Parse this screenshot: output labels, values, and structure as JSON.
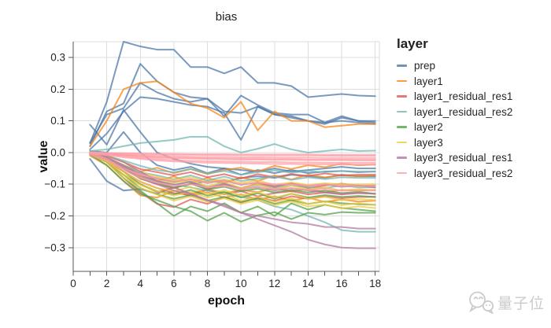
{
  "title": "bias",
  "legend": {
    "title": "layer"
  },
  "watermark": {
    "text": "量子位"
  },
  "colors": {
    "grid": "#dddddd",
    "view_border": "#dddddd",
    "axis": "#555555",
    "tick_label": "#262626",
    "watermark": "#cbcbcb"
  },
  "chart_data": {
    "type": "line",
    "title": "bias",
    "xlabel": "epoch",
    "ylabel": "value",
    "xlim": [
      0,
      18.25
    ],
    "ylim": [
      -0.375,
      0.35
    ],
    "x_ticks": [
      0,
      2,
      4,
      6,
      8,
      10,
      12,
      14,
      16,
      18
    ],
    "x_minor_tick_step": 1,
    "y_ticks": [
      0.3,
      0.2,
      0.1,
      0.0,
      -0.1,
      -0.2,
      -0.3
    ],
    "grid": true,
    "legend_position": "right",
    "line_opacity": 0.75,
    "line_width": 2,
    "x": [
      1,
      2,
      3,
      4,
      5,
      6,
      7,
      8,
      9,
      10,
      11,
      12,
      13,
      14,
      15,
      16,
      17,
      18
    ],
    "groups": [
      {
        "name": "prep",
        "color": "#4c78a8",
        "lines": [
          [
            0.03,
            0.16,
            0.35,
            0.335,
            0.325,
            0.325,
            0.27,
            0.27,
            0.25,
            0.27,
            0.22,
            0.22,
            0.21,
            0.175,
            0.18,
            0.185,
            0.18,
            0.178
          ],
          [
            0.02,
            0.13,
            0.155,
            0.28,
            0.225,
            0.19,
            0.175,
            0.17,
            0.13,
            0.125,
            0.145,
            0.12,
            0.115,
            0.1,
            0.09,
            0.11,
            0.1,
            0.095
          ],
          [
            0.03,
            0.12,
            0.14,
            0.22,
            0.19,
            0.17,
            0.16,
            0.17,
            0.115,
            0.18,
            0.15,
            0.125,
            0.12,
            0.12,
            0.095,
            0.115,
            0.1,
            0.1
          ],
          [
            0.01,
            0.06,
            0.13,
            0.175,
            0.17,
            0.16,
            0.15,
            0.145,
            0.125,
            0.04,
            0.145,
            0.12,
            0.11,
            0.1,
            0.095,
            0.1,
            0.095,
            0.09
          ],
          [
            0.088,
            0.025,
            0.135,
            0.065,
            0.0,
            -0.02,
            -0.035,
            -0.045,
            -0.05,
            -0.055,
            -0.06,
            -0.05,
            -0.06,
            -0.055,
            -0.05,
            -0.045,
            -0.05,
            -0.05
          ],
          [
            -0.02,
            -0.09,
            -0.12,
            -0.115,
            -0.13,
            -0.11,
            -0.1,
            -0.09,
            -0.095,
            -0.08,
            -0.075,
            -0.08,
            -0.07,
            -0.075,
            -0.08,
            -0.07,
            -0.075,
            -0.075
          ],
          [
            0.005,
            0.0,
            0.065,
            0.0,
            -0.04,
            -0.055,
            -0.045,
            -0.065,
            -0.05,
            -0.07,
            -0.055,
            -0.065,
            -0.055,
            -0.065,
            -0.06,
            -0.058,
            -0.062,
            -0.06
          ]
        ]
      },
      {
        "name": "layer1",
        "color": "#f58518",
        "lines": [
          [
            0.02,
            0.1,
            0.2,
            0.22,
            0.225,
            0.19,
            0.155,
            0.14,
            0.11,
            0.16,
            0.07,
            0.13,
            0.1,
            0.1,
            0.08,
            0.085,
            0.09,
            0.09
          ],
          [
            0.0,
            -0.02,
            -0.05,
            -0.075,
            -0.09,
            -0.075,
            -0.095,
            -0.08,
            -0.095,
            -0.078,
            -0.09,
            -0.072,
            -0.085,
            -0.07,
            -0.078,
            -0.072,
            -0.075,
            -0.072
          ],
          [
            -0.005,
            -0.03,
            -0.07,
            -0.1,
            -0.125,
            -0.11,
            -0.13,
            -0.115,
            -0.128,
            -0.118,
            -0.125,
            -0.112,
            -0.122,
            -0.115,
            -0.125,
            -0.118,
            -0.12,
            -0.118
          ],
          [
            0.0,
            -0.015,
            -0.04,
            -0.06,
            -0.048,
            -0.065,
            -0.052,
            -0.068,
            -0.055,
            -0.048,
            -0.06,
            -0.042,
            -0.052,
            -0.04,
            -0.046,
            -0.035,
            -0.04,
            -0.038
          ],
          [
            -0.01,
            -0.04,
            -0.09,
            -0.135,
            -0.142,
            -0.12,
            -0.138,
            -0.125,
            -0.142,
            -0.132,
            -0.148,
            -0.138,
            -0.152,
            -0.142,
            -0.156,
            -0.148,
            -0.155,
            -0.152
          ]
        ]
      },
      {
        "name": "layer1_residual_res1",
        "color": "#e45756",
        "lines": [
          [
            0.0,
            -0.03,
            -0.08,
            -0.125,
            -0.162,
            -0.172,
            -0.148,
            -0.162,
            -0.14,
            -0.158,
            -0.142,
            -0.152,
            -0.138,
            -0.146,
            -0.138,
            -0.144,
            -0.14,
            -0.14
          ],
          [
            -0.005,
            -0.02,
            -0.05,
            -0.082,
            -0.1,
            -0.112,
            -0.098,
            -0.116,
            -0.102,
            -0.112,
            -0.098,
            -0.108,
            -0.098,
            -0.112,
            -0.104,
            -0.098,
            -0.105,
            -0.104
          ],
          [
            0.0,
            -0.01,
            -0.03,
            -0.052,
            -0.062,
            -0.072,
            -0.062,
            -0.078,
            -0.068,
            -0.082,
            -0.068,
            -0.078,
            -0.068,
            -0.074,
            -0.066,
            -0.072,
            -0.07,
            -0.07
          ],
          [
            -0.005,
            -0.025,
            -0.06,
            -0.092,
            -0.112,
            -0.128,
            -0.134,
            -0.118,
            -0.132,
            -0.122,
            -0.138,
            -0.128,
            -0.122,
            -0.132,
            -0.126,
            -0.132,
            -0.128,
            -0.13
          ]
        ]
      },
      {
        "name": "layer1_residual_res2",
        "color": "#72b7b2",
        "lines": [
          [
            0.005,
            0.01,
            0.02,
            0.03,
            0.035,
            0.04,
            0.05,
            0.05,
            0.02,
            0.0,
            0.012,
            0.027,
            0.01,
            0.0,
            0.005,
            0.01,
            0.005,
            0.006
          ],
          [
            0.0,
            -0.02,
            -0.05,
            -0.08,
            -0.09,
            -0.1,
            -0.11,
            -0.12,
            -0.13,
            -0.14,
            -0.15,
            -0.17,
            -0.18,
            -0.2,
            -0.22,
            -0.245,
            -0.25,
            -0.25
          ],
          [
            0.0,
            -0.015,
            -0.04,
            -0.062,
            -0.072,
            -0.084,
            -0.072,
            -0.088,
            -0.076,
            -0.09,
            -0.082,
            -0.076,
            -0.086,
            -0.078,
            -0.084,
            -0.078,
            -0.08,
            -0.08
          ],
          [
            -0.005,
            -0.02,
            -0.045,
            -0.072,
            -0.09,
            -0.102,
            -0.092,
            -0.108,
            -0.098,
            -0.112,
            -0.102,
            -0.112,
            -0.104,
            -0.11,
            -0.112,
            -0.104,
            -0.11,
            -0.11
          ],
          [
            0.0,
            -0.01,
            -0.025,
            -0.042,
            -0.056,
            -0.062,
            -0.052,
            -0.066,
            -0.058,
            -0.07,
            -0.062,
            -0.056,
            -0.064,
            -0.058,
            -0.062,
            -0.058,
            -0.06,
            -0.06
          ]
        ]
      },
      {
        "name": "layer2",
        "color": "#54a24b",
        "lines": [
          [
            0.0,
            -0.03,
            -0.08,
            -0.12,
            -0.16,
            -0.2,
            -0.17,
            -0.185,
            -0.16,
            -0.19,
            -0.17,
            -0.2,
            -0.16,
            -0.18,
            -0.165,
            -0.175,
            -0.18,
            -0.185
          ],
          [
            -0.005,
            -0.04,
            -0.09,
            -0.13,
            -0.15,
            -0.17,
            -0.185,
            -0.215,
            -0.19,
            -0.218,
            -0.198,
            -0.188,
            -0.21,
            -0.19,
            -0.196,
            -0.188,
            -0.19,
            -0.19
          ],
          [
            0.0,
            -0.02,
            -0.06,
            -0.1,
            -0.122,
            -0.132,
            -0.118,
            -0.136,
            -0.124,
            -0.142,
            -0.128,
            -0.146,
            -0.13,
            -0.142,
            -0.134,
            -0.14,
            -0.137,
            -0.14
          ],
          [
            -0.005,
            -0.03,
            -0.07,
            -0.112,
            -0.132,
            -0.146,
            -0.134,
            -0.152,
            -0.14,
            -0.156,
            -0.144,
            -0.162,
            -0.15,
            -0.162,
            -0.154,
            -0.16,
            -0.163,
            -0.165
          ],
          [
            0.0,
            -0.015,
            -0.05,
            -0.082,
            -0.096,
            -0.112,
            -0.098,
            -0.116,
            -0.108,
            -0.122,
            -0.114,
            -0.126,
            -0.118,
            -0.126,
            -0.12,
            -0.128,
            -0.124,
            -0.13
          ]
        ]
      },
      {
        "name": "layer3",
        "color": "#eeca3b",
        "lines": [
          [
            0.0,
            -0.02,
            -0.06,
            -0.092,
            -0.112,
            -0.122,
            -0.108,
            -0.132,
            -0.118,
            -0.136,
            -0.124,
            -0.142,
            -0.13,
            -0.146,
            -0.14,
            -0.15,
            -0.147,
            -0.15
          ],
          [
            -0.005,
            -0.03,
            -0.08,
            -0.112,
            -0.132,
            -0.152,
            -0.138,
            -0.156,
            -0.144,
            -0.162,
            -0.15,
            -0.166,
            -0.154,
            -0.17,
            -0.164,
            -0.176,
            -0.17,
            -0.175
          ],
          [
            0.0,
            -0.015,
            -0.04,
            -0.072,
            -0.086,
            -0.096,
            -0.088,
            -0.106,
            -0.094,
            -0.112,
            -0.1,
            -0.116,
            -0.104,
            -0.116,
            -0.11,
            -0.12,
            -0.115,
            -0.12
          ],
          [
            -0.005,
            -0.025,
            -0.07,
            -0.102,
            -0.122,
            -0.136,
            -0.124,
            -0.142,
            -0.13,
            -0.152,
            -0.14,
            -0.156,
            -0.144,
            -0.162,
            -0.154,
            -0.166,
            -0.16,
            -0.165
          ],
          [
            0.0,
            -0.01,
            -0.03,
            -0.062,
            -0.076,
            -0.086,
            -0.078,
            -0.092,
            -0.084,
            -0.096,
            -0.088,
            -0.102,
            -0.094,
            -0.102,
            -0.097,
            -0.1,
            -0.1,
            -0.1
          ]
        ]
      },
      {
        "name": "layer3_residual_res1",
        "color": "#b279a2",
        "lines": [
          [
            0.0,
            -0.01,
            -0.03,
            -0.06,
            -0.09,
            -0.11,
            -0.13,
            -0.15,
            -0.17,
            -0.19,
            -0.21,
            -0.23,
            -0.25,
            -0.275,
            -0.29,
            -0.3,
            -0.302,
            -0.302
          ],
          [
            -0.005,
            -0.02,
            -0.05,
            -0.08,
            -0.1,
            -0.12,
            -0.13,
            -0.15,
            -0.165,
            -0.19,
            -0.2,
            -0.21,
            -0.22,
            -0.225,
            -0.235,
            -0.235,
            -0.24,
            -0.24
          ],
          [
            0.0,
            -0.015,
            -0.04,
            -0.072,
            -0.09,
            -0.102,
            -0.092,
            -0.112,
            -0.098,
            -0.116,
            -0.108,
            -0.12,
            -0.112,
            -0.12,
            -0.126,
            -0.13,
            -0.127,
            -0.13
          ],
          [
            -0.005,
            -0.02,
            -0.045,
            -0.066,
            -0.082,
            -0.092,
            -0.084,
            -0.096,
            -0.088,
            -0.102,
            -0.094,
            -0.106,
            -0.098,
            -0.106,
            -0.1,
            -0.108,
            -0.104,
            -0.11
          ]
        ]
      },
      {
        "name": "layer3_residual_res2",
        "color": "#ff9da6",
        "lines": [
          [
            0.0,
            -0.002,
            -0.004,
            -0.005,
            -0.006,
            -0.007,
            -0.007,
            -0.008,
            -0.008,
            -0.008,
            -0.009,
            -0.009,
            -0.009,
            -0.009,
            -0.01,
            -0.01,
            -0.01,
            -0.01
          ],
          [
            0.001,
            -0.001,
            -0.002,
            -0.003,
            -0.004,
            -0.004,
            -0.005,
            -0.005,
            -0.005,
            -0.006,
            -0.006,
            -0.006,
            -0.006,
            -0.006,
            -0.007,
            -0.007,
            -0.007,
            -0.007
          ],
          [
            0.0,
            -0.003,
            -0.006,
            -0.009,
            -0.011,
            -0.012,
            -0.013,
            -0.014,
            -0.014,
            -0.015,
            -0.015,
            -0.016,
            -0.016,
            -0.016,
            -0.017,
            -0.017,
            -0.017,
            -0.017
          ],
          [
            0.0,
            -0.004,
            -0.008,
            -0.011,
            -0.014,
            -0.016,
            -0.017,
            -0.018,
            -0.019,
            -0.02,
            -0.02,
            -0.021,
            -0.021,
            -0.022,
            -0.022,
            -0.022,
            -0.022,
            -0.022
          ],
          [
            -0.002,
            -0.005,
            -0.009,
            -0.013,
            -0.016,
            -0.018,
            -0.019,
            -0.02,
            -0.021,
            -0.022,
            -0.022,
            -0.023,
            -0.023,
            -0.024,
            -0.024,
            -0.024,
            -0.025,
            -0.025
          ],
          [
            -0.001,
            -0.006,
            -0.012,
            -0.017,
            -0.021,
            -0.024,
            -0.026,
            -0.027,
            -0.028,
            -0.029,
            -0.03,
            -0.03,
            -0.031,
            -0.031,
            -0.032,
            -0.032,
            -0.032,
            -0.032
          ],
          [
            -0.003,
            -0.008,
            -0.015,
            -0.02,
            -0.025,
            -0.028,
            -0.03,
            -0.032,
            -0.033,
            -0.034,
            -0.035,
            -0.036,
            -0.036,
            -0.037,
            -0.037,
            -0.038,
            -0.038,
            -0.038
          ],
          [
            0.0,
            -0.02,
            -0.05,
            -0.07,
            -0.08,
            -0.09,
            -0.085,
            -0.095,
            -0.09,
            -0.1,
            -0.095,
            -0.1,
            -0.1,
            -0.105,
            -0.1,
            -0.105,
            -0.105,
            -0.105
          ],
          [
            -0.005,
            -0.025,
            -0.055,
            -0.08,
            -0.095,
            -0.105,
            -0.1,
            -0.11,
            -0.105,
            -0.115,
            -0.11,
            -0.115,
            -0.112,
            -0.118,
            -0.115,
            -0.12,
            -0.12,
            -0.12
          ]
        ]
      }
    ]
  }
}
